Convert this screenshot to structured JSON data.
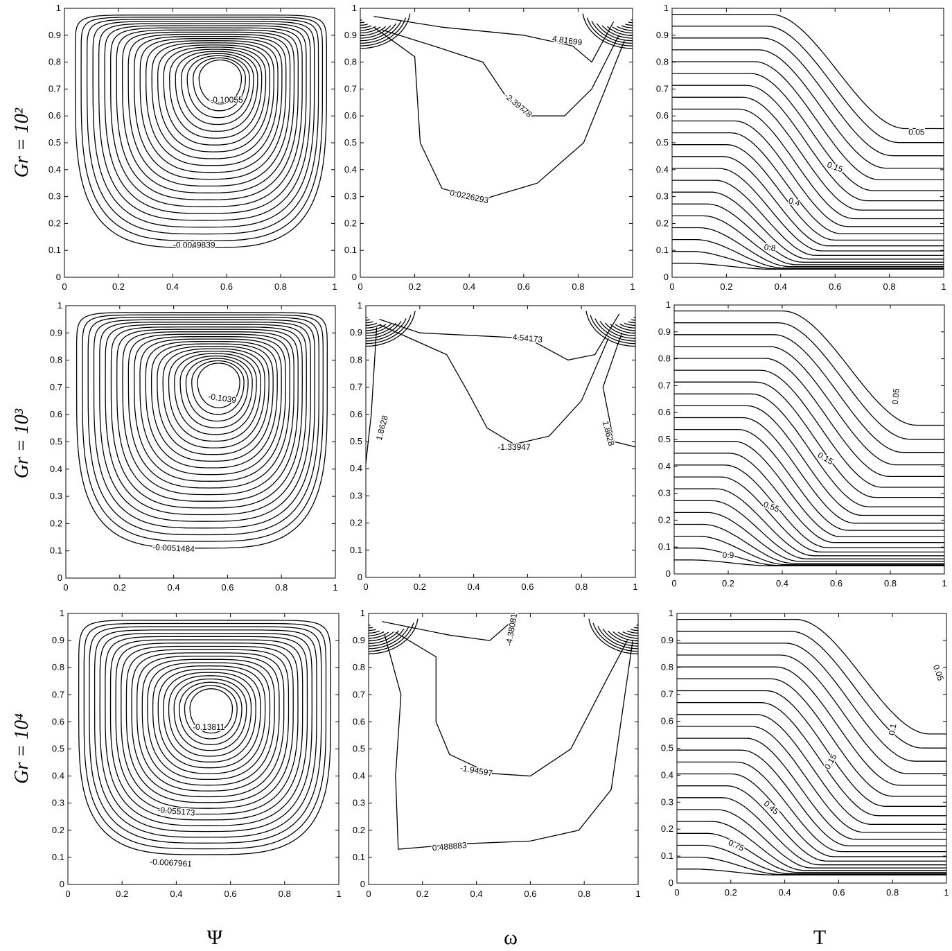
{
  "row_labels": [
    "Gr = 10²",
    "Gr = 10³",
    "Gr = 10⁴"
  ],
  "column_labels": [
    "Ψ",
    "ω",
    "T"
  ],
  "chart_data": [
    {
      "type": "contour",
      "xlim": [
        0,
        1
      ],
      "ylim": [
        0,
        1
      ],
      "xticks": [
        0,
        0.2,
        0.4,
        0.6,
        0.8,
        1
      ],
      "yticks": [
        0,
        0.1,
        0.2,
        0.3,
        0.4,
        0.5,
        0.6,
        0.7,
        0.8,
        0.9,
        1
      ],
      "levels": [
        -0.10055,
        -0.0049839
      ]
    },
    {
      "type": "contour",
      "xlim": [
        0,
        1
      ],
      "ylim": [
        0,
        1
      ],
      "xticks": [
        0,
        0.2,
        0.4,
        0.6,
        0.8,
        1
      ],
      "yticks": [
        0,
        0.1,
        0.2,
        0.3,
        0.4,
        0.5,
        0.6,
        0.7,
        0.8,
        0.9,
        1
      ],
      "levels": [
        4.81699,
        -2.39778,
        0.0226293
      ]
    },
    {
      "type": "contour",
      "xlim": [
        0,
        1
      ],
      "ylim": [
        0,
        1
      ],
      "xticks": [
        0,
        0.2,
        0.4,
        0.6,
        0.8,
        1
      ],
      "yticks": [
        0,
        0.1,
        0.2,
        0.3,
        0.4,
        0.5,
        0.6,
        0.7,
        0.8,
        0.9,
        1
      ],
      "levels": [
        0.05,
        0.15,
        0.4,
        0.8
      ]
    },
    {
      "type": "contour",
      "xlim": [
        0,
        1
      ],
      "ylim": [
        0,
        1
      ],
      "xticks": [
        0,
        0.2,
        0.4,
        0.6,
        0.8,
        1
      ],
      "yticks": [
        0,
        0.1,
        0.2,
        0.3,
        0.4,
        0.5,
        0.6,
        0.7,
        0.8,
        0.9,
        1
      ],
      "levels": [
        -0.1039,
        -0.0051484
      ]
    },
    {
      "type": "contour",
      "xlim": [
        0,
        1
      ],
      "ylim": [
        0,
        1
      ],
      "xticks": [
        0,
        0.2,
        0.4,
        0.6,
        0.8,
        1
      ],
      "yticks": [
        0,
        0.1,
        0.2,
        0.3,
        0.4,
        0.5,
        0.6,
        0.7,
        0.8,
        0.9,
        1
      ],
      "levels": [
        4.54173,
        1.8628,
        -1.33947,
        1.8628
      ]
    },
    {
      "type": "contour",
      "xlim": [
        0,
        1
      ],
      "ylim": [
        0,
        1
      ],
      "xticks": [
        0,
        0.2,
        0.4,
        0.6,
        0.8,
        1
      ],
      "yticks": [
        0,
        0.1,
        0.2,
        0.3,
        0.4,
        0.5,
        0.6,
        0.7,
        0.8,
        0.9,
        1
      ],
      "levels": [
        0.05,
        0.15,
        0.55,
        0.9
      ]
    },
    {
      "type": "contour",
      "xlim": [
        0,
        1
      ],
      "ylim": [
        0,
        1
      ],
      "xticks": [
        0,
        0.2,
        0.4,
        0.6,
        0.8,
        1
      ],
      "yticks": [
        0,
        0.1,
        0.2,
        0.3,
        0.4,
        0.5,
        0.6,
        0.7,
        0.8,
        0.9,
        1
      ],
      "levels": [
        -0.13811,
        -0.055173,
        -0.0067961
      ]
    },
    {
      "type": "contour",
      "xlim": [
        0,
        1
      ],
      "ylim": [
        0,
        1
      ],
      "xticks": [
        0,
        0.2,
        0.4,
        0.6,
        0.8,
        1
      ],
      "yticks": [
        0,
        0.1,
        0.2,
        0.3,
        0.4,
        0.5,
        0.6,
        0.7,
        0.8,
        0.9,
        1
      ],
      "levels": [
        -4.38081,
        -1.94597,
        0.488883
      ]
    },
    {
      "type": "contour",
      "xlim": [
        0,
        1
      ],
      "ylim": [
        0,
        1
      ],
      "xticks": [
        0,
        0.2,
        0.4,
        0.6,
        0.8,
        1
      ],
      "yticks": [
        0,
        0.1,
        0.2,
        0.3,
        0.4,
        0.5,
        0.6,
        0.7,
        0.8,
        0.9,
        1
      ],
      "levels": [
        0.05,
        0.1,
        0.15,
        0.45,
        0.75
      ]
    }
  ]
}
